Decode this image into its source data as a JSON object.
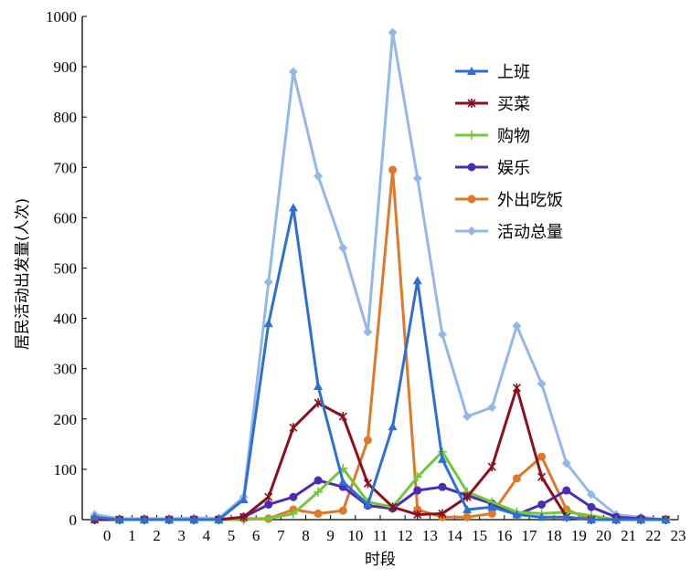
{
  "chart_data": {
    "type": "line",
    "title": "",
    "xlabel": "时段",
    "ylabel": "居民活动出发量(人次)",
    "ylim": [
      0,
      1000
    ],
    "yticks": [
      0,
      100,
      200,
      300,
      400,
      500,
      600,
      700,
      800,
      900,
      1000
    ],
    "xticks": [
      "0",
      "1",
      "2",
      "3",
      "4",
      "5",
      "6",
      "7",
      "8",
      "9",
      "10",
      "11",
      "12",
      "13",
      "14",
      "15",
      "16",
      "17",
      "18",
      "19",
      "20",
      "21",
      "22",
      "23"
    ],
    "x": [
      0,
      1,
      2,
      3,
      4,
      5,
      6,
      7,
      8,
      9,
      10,
      11,
      12,
      13,
      14,
      15,
      16,
      17,
      18,
      19,
      20,
      21,
      22,
      23
    ],
    "legend_position": "top-right",
    "grid": false,
    "series": [
      {
        "name": "上班",
        "color": "#2e6fd1",
        "marker": "triangle",
        "values": [
          5,
          0,
          0,
          0,
          0,
          0,
          40,
          390,
          620,
          265,
          75,
          30,
          185,
          475,
          120,
          20,
          25,
          10,
          5,
          5,
          0,
          0,
          0,
          0
        ]
      },
      {
        "name": "买菜",
        "color": "#8b0f1d",
        "marker": "star",
        "values": [
          0,
          0,
          0,
          0,
          0,
          0,
          5,
          45,
          183,
          232,
          205,
          72,
          25,
          10,
          12,
          45,
          105,
          262,
          85,
          5,
          0,
          0,
          0,
          0
        ]
      },
      {
        "name": "购物",
        "color": "#72c83a",
        "marker": "plus",
        "values": [
          0,
          0,
          0,
          0,
          0,
          0,
          0,
          2,
          12,
          55,
          102,
          35,
          25,
          85,
          135,
          55,
          35,
          15,
          12,
          15,
          8,
          0,
          0,
          0
        ]
      },
      {
        "name": "娱乐",
        "color": "#4a2db5",
        "marker": "circle",
        "values": [
          0,
          0,
          0,
          0,
          0,
          0,
          5,
          30,
          45,
          78,
          65,
          28,
          22,
          58,
          65,
          48,
          32,
          10,
          30,
          58,
          25,
          5,
          2,
          0
        ]
      },
      {
        "name": "外出吃饭",
        "color": "#e0782a",
        "marker": "circle",
        "values": [
          0,
          0,
          0,
          0,
          0,
          0,
          2,
          2,
          20,
          12,
          18,
          158,
          695,
          20,
          5,
          5,
          12,
          82,
          125,
          20,
          0,
          0,
          0,
          0
        ]
      },
      {
        "name": "活动总量",
        "color": "#93b8e8",
        "marker": "diamond",
        "values": [
          10,
          2,
          2,
          2,
          3,
          3,
          45,
          472,
          890,
          683,
          540,
          373,
          968,
          678,
          368,
          205,
          223,
          385,
          270,
          112,
          50,
          10,
          5,
          0
        ]
      }
    ]
  }
}
